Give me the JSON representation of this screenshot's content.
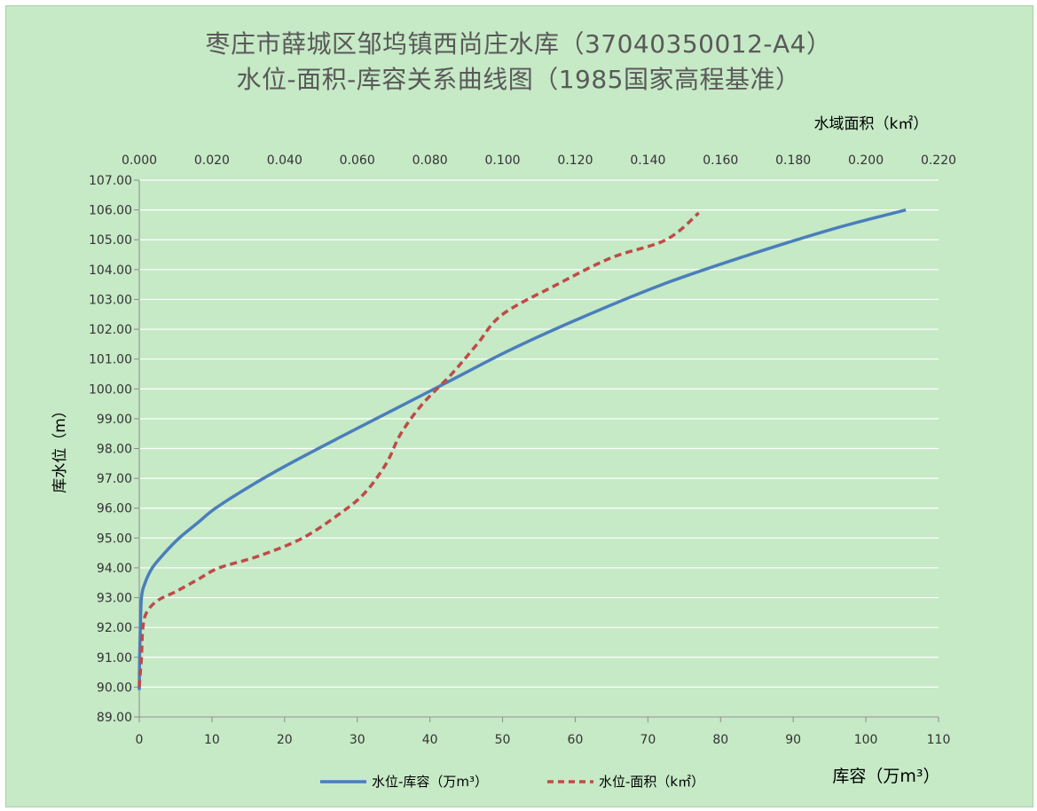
{
  "chart_data": {
    "type": "line",
    "title_line1": "枣庄市薛城区邹坞镇西尚庄水库（37040350012-A4）",
    "title_line2": "水位-面积-库容关系曲线图（1985国家高程基准）",
    "ylabel": "库水位（m）",
    "xlabel_bottom": "库容（万m³）",
    "xlabel_top": "水域面积（k㎡）",
    "ylim": [
      89,
      107
    ],
    "yticks": [
      "89.00",
      "90.00",
      "91.00",
      "92.00",
      "93.00",
      "94.00",
      "95.00",
      "96.00",
      "97.00",
      "98.00",
      "99.00",
      "100.00",
      "101.00",
      "102.00",
      "103.00",
      "104.00",
      "105.00",
      "106.00",
      "107.00"
    ],
    "xlim_bottom": [
      0,
      110
    ],
    "xticks_bottom": [
      "0",
      "10",
      "20",
      "30",
      "40",
      "50",
      "60",
      "70",
      "80",
      "90",
      "100",
      "110"
    ],
    "xlim_top": [
      0,
      0.22
    ],
    "xticks_top": [
      "0.000",
      "0.020",
      "0.040",
      "0.060",
      "0.080",
      "0.100",
      "0.120",
      "0.140",
      "0.160",
      "0.180",
      "0.200",
      "0.220"
    ],
    "grid": "horizontal",
    "legend_position": "bottom",
    "colors": {
      "storage": "#4a7ebb",
      "area": "#be4b48"
    },
    "series": [
      {
        "name": "水位-库容（万m³）",
        "axis": "bottom",
        "style": "solid",
        "points": [
          [
            0,
            89.9
          ],
          [
            0.05,
            91
          ],
          [
            0.15,
            92
          ],
          [
            0.3,
            93
          ],
          [
            0.8,
            93.5
          ],
          [
            1.8,
            94
          ],
          [
            3.5,
            94.5
          ],
          [
            5.5,
            95
          ],
          [
            8,
            95.5
          ],
          [
            10.5,
            96
          ],
          [
            15,
            96.7
          ],
          [
            20,
            97.4
          ],
          [
            27,
            98.3
          ],
          [
            35,
            99.3
          ],
          [
            43,
            100.3
          ],
          [
            51,
            101.3
          ],
          [
            60,
            102.3
          ],
          [
            72,
            103.5
          ],
          [
            84,
            104.5
          ],
          [
            96,
            105.4
          ],
          [
            105.5,
            106
          ]
        ]
      },
      {
        "name": "水位-面积（k㎡）",
        "axis": "top",
        "style": "dashed",
        "points": [
          [
            0.0,
            90
          ],
          [
            0.0003,
            90.5
          ],
          [
            0.0006,
            91
          ],
          [
            0.001,
            92
          ],
          [
            0.002,
            92.5
          ],
          [
            0.005,
            92.9
          ],
          [
            0.01,
            93.2
          ],
          [
            0.016,
            93.6
          ],
          [
            0.022,
            94
          ],
          [
            0.033,
            94.4
          ],
          [
            0.045,
            95
          ],
          [
            0.055,
            95.8
          ],
          [
            0.062,
            96.5
          ],
          [
            0.068,
            97.5
          ],
          [
            0.072,
            98.5
          ],
          [
            0.078,
            99.5
          ],
          [
            0.086,
            100.5
          ],
          [
            0.093,
            101.5
          ],
          [
            0.1,
            102.5
          ],
          [
            0.115,
            103.5
          ],
          [
            0.13,
            104.4
          ],
          [
            0.145,
            105
          ],
          [
            0.154,
            105.9
          ]
        ]
      }
    ]
  }
}
